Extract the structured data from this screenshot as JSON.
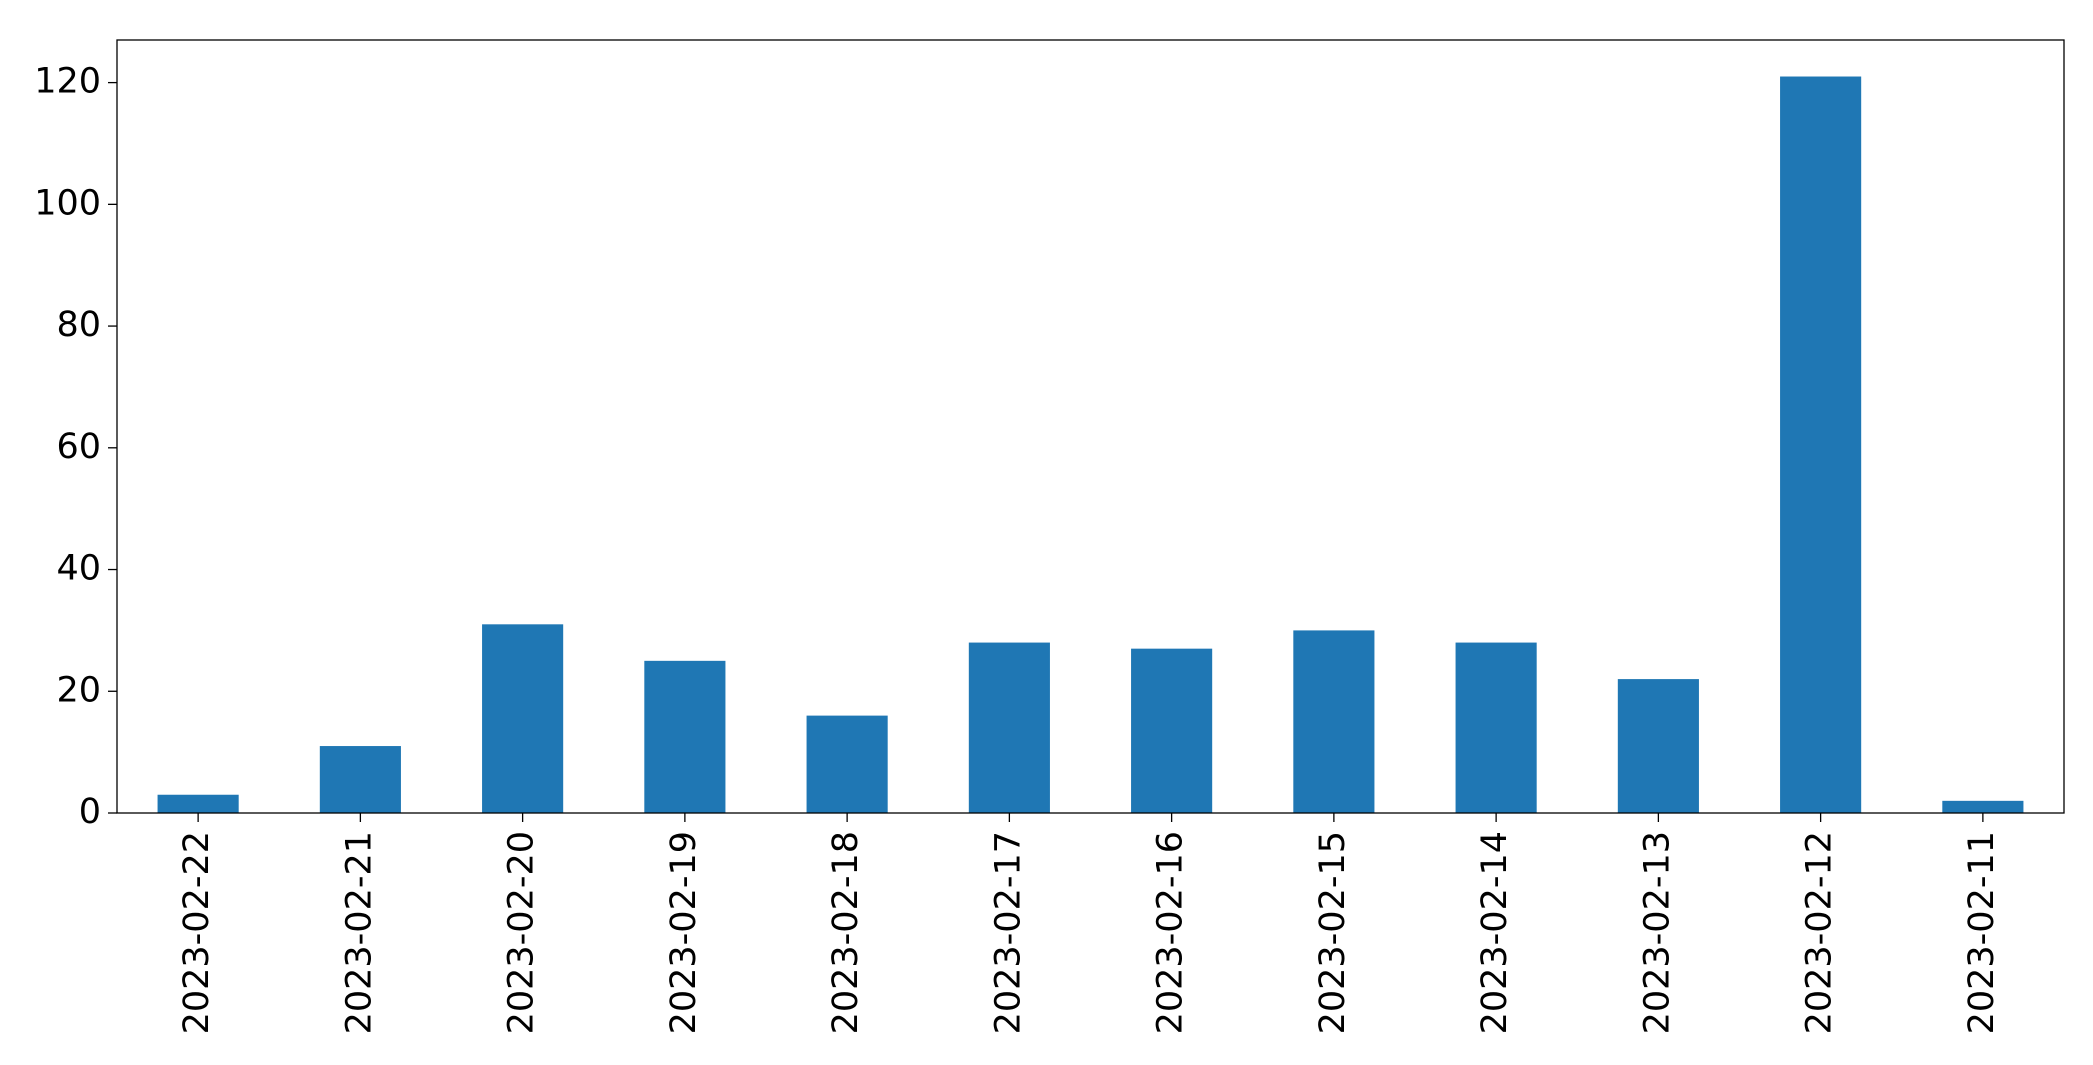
{
  "chart_data": {
    "type": "bar",
    "categories": [
      "2023-02-22",
      "2023-02-21",
      "2023-02-20",
      "2023-02-19",
      "2023-02-18",
      "2023-02-17",
      "2023-02-16",
      "2023-02-15",
      "2023-02-14",
      "2023-02-13",
      "2023-02-12",
      "2023-02-11"
    ],
    "values": [
      3,
      11,
      31,
      25,
      16,
      28,
      27,
      30,
      28,
      22,
      121,
      2
    ],
    "color": "#1f77b4",
    "ylim": [
      0,
      127
    ],
    "yticks": [
      0,
      20,
      40,
      60,
      80,
      100,
      120
    ],
    "grid": false
  }
}
